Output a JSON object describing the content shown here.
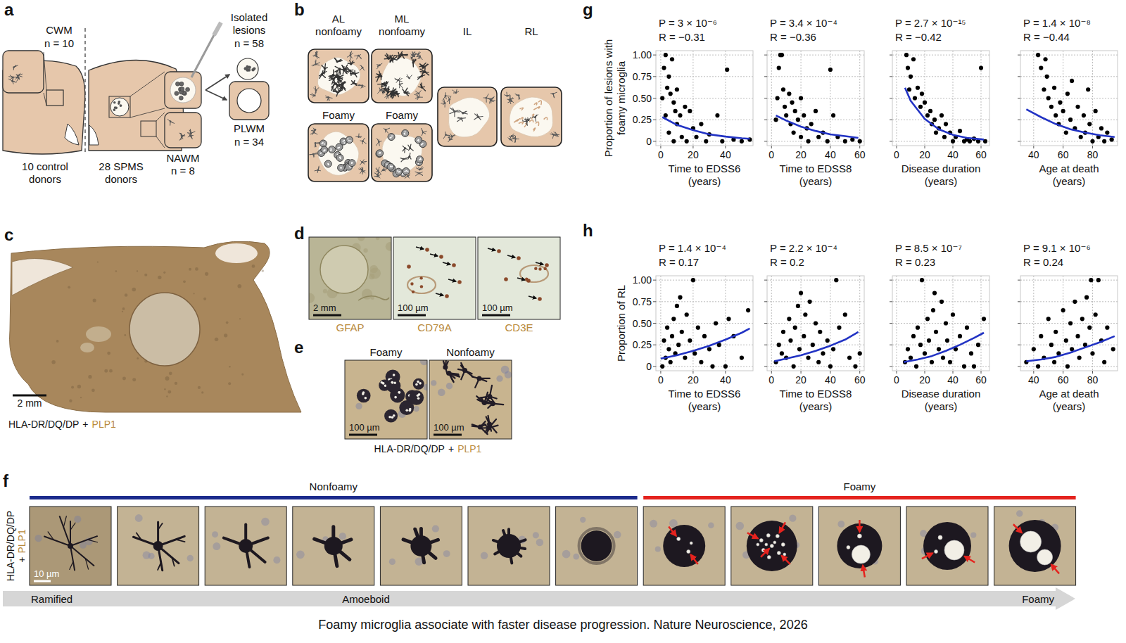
{
  "panels": {
    "a": {
      "letter": "a",
      "cwm": {
        "label": "CWM",
        "n": "n = 10"
      },
      "isolated": {
        "label": "Isolated lesions",
        "n": "n = 58"
      },
      "plwm": {
        "label": "PLWM",
        "n": "n = 34"
      },
      "nawm": {
        "label": "NAWM",
        "n": "n = 8"
      },
      "donors": [
        "10 control donors",
        "28 SPMS donors"
      ]
    },
    "b": {
      "letter": "b",
      "boxes": [
        "AL nonfoamy",
        "ML nonfoamy",
        "IL",
        "RL",
        "Foamy",
        "Foamy"
      ]
    },
    "c": {
      "letter": "c",
      "scale_bar": "2 mm",
      "stain_label": [
        "HLA-DR/DQ/DP",
        "+",
        "PLP1"
      ]
    },
    "d": {
      "letter": "d",
      "images": [
        {
          "label": "GFAP",
          "scale_bar": "2 mm"
        },
        {
          "label": "CD79A",
          "scale_bar": "100 µm"
        },
        {
          "label": "CD3E",
          "scale_bar": "100 µm"
        }
      ]
    },
    "e": {
      "letter": "e",
      "images": [
        {
          "label": "Foamy",
          "scale_bar": "100 µm"
        },
        {
          "label": "Nonfoamy",
          "scale_bar": "100 µm"
        }
      ],
      "stain_label": [
        "HLA-DR/DQ/DP",
        "+",
        "PLP1"
      ]
    },
    "f": {
      "letter": "f",
      "groups": [
        {
          "label": "Nonfoamy",
          "color": "#1c2b8c"
        },
        {
          "label": "Foamy",
          "color": "#e4231e"
        }
      ],
      "scale_bar": "10 µm",
      "stain_label": [
        "HLA-DR/DQ/DP",
        "+",
        "PLP1"
      ],
      "axis_labels": [
        "Ramified",
        "Amoeboid",
        "Foamy"
      ]
    },
    "g": {
      "letter": "g"
    },
    "h": {
      "letter": "h"
    }
  },
  "caption": "Foamy microglia associate with faster disease progression. Nature Neuroscience, 2026",
  "chart_data": [
    {
      "type": "scatter",
      "xlabel": "Time to EDSS6 (years)",
      "ylabel": "Proportion of lesions with foamy microglia",
      "annotations": [
        "P = 3 × 10⁻⁶",
        "R = −0.31"
      ],
      "xlim": [
        -3,
        57
      ],
      "xticks": [
        0,
        20,
        40
      ],
      "ylim": [
        -0.05,
        1.05
      ],
      "yticks": [
        0,
        0.25,
        {
          "value": 0.5,
          "label": "0.50"
        },
        0.75,
        {
          "value": 1,
          "label": "1.00"
        }
      ],
      "grid": true,
      "series": [
        {
          "type": "scatter",
          "color": "#000000",
          "marker": "circle",
          "x": [
            1,
            2,
            3,
            3,
            4,
            5,
            5,
            6,
            7,
            8,
            8,
            9,
            10,
            10,
            12,
            13,
            15,
            16,
            18,
            20,
            22,
            25,
            28,
            30,
            35,
            38,
            41,
            45,
            50,
            55
          ],
          "values": [
            0.5,
            0.85,
            1,
            0.3,
            0.62,
            0.75,
            0.1,
            0.55,
            0.95,
            0.45,
            0,
            0.35,
            0.6,
            0.2,
            0.3,
            0.05,
            0.4,
            0,
            0.35,
            0.15,
            0.05,
            0.2,
            0,
            0.08,
            0.3,
            0,
            0.83,
            0.02,
            0,
            0.02
          ]
        },
        {
          "type": "line",
          "color": "#2233c4",
          "line_style": "solid",
          "x": [
            1,
            10,
            20,
            30,
            40,
            50,
            55
          ],
          "values": [
            0.28,
            0.19,
            0.13,
            0.08,
            0.055,
            0.035,
            0.03
          ]
        }
      ]
    },
    {
      "type": "scatter",
      "xlabel": "Time to EDSS8 (years)",
      "annotations": [
        "P = 3.4 × 10⁻⁴",
        "R = −0.36"
      ],
      "xlim": [
        -3,
        63
      ],
      "xticks": [
        0,
        20,
        40,
        60
      ],
      "ylim": [
        -0.05,
        1.05
      ],
      "yticks": [
        0,
        0.25,
        {
          "value": 0.5,
          "label": "0.50"
        },
        0.75,
        {
          "value": 1,
          "label": "1.00"
        }
      ],
      "grid": true,
      "tick_labels": "x",
      "series": [
        {
          "type": "scatter",
          "color": "#000000",
          "marker": "circle",
          "x": [
            5,
            6,
            7,
            4,
            8,
            9,
            10,
            3,
            12,
            13,
            14,
            15,
            16,
            18,
            20,
            20,
            22,
            24,
            25,
            27,
            30,
            32,
            35,
            38,
            40,
            42,
            45,
            50,
            55,
            60
          ],
          "values": [
            0.85,
            1,
            1,
            0.5,
            0.6,
            0.4,
            0.3,
            0.25,
            0.55,
            0.2,
            0.45,
            0.1,
            0.35,
            0.25,
            0.5,
            0.05,
            0.3,
            0.15,
            0,
            0.2,
            0.35,
            0.05,
            0.1,
            0,
            0.83,
            0.3,
            0.05,
            0,
            0.02,
            0
          ]
        },
        {
          "type": "line",
          "color": "#2233c4",
          "line_style": "solid",
          "x": [
            3,
            10,
            20,
            30,
            40,
            50,
            59
          ],
          "values": [
            0.3,
            0.24,
            0.17,
            0.12,
            0.08,
            0.06,
            0.04
          ]
        }
      ]
    },
    {
      "type": "scatter",
      "xlabel": "Disease duration (years)",
      "annotations": [
        "P = 2.7 × 10⁻¹⁵",
        "R = −0.42"
      ],
      "xlim": [
        -3,
        66
      ],
      "xticks": [
        0,
        20,
        40,
        60
      ],
      "ylim": [
        -0.05,
        1.05
      ],
      "yticks": [
        0,
        0.25,
        {
          "value": 0.5,
          "label": "0.50"
        },
        0.75,
        {
          "value": 1,
          "label": "1.00"
        }
      ],
      "grid": true,
      "tick_labels": "x",
      "series": [
        {
          "type": "scatter",
          "color": "#000000",
          "marker": "circle",
          "x": [
            7,
            8,
            10,
            12,
            9,
            13,
            15,
            17,
            18,
            20,
            22,
            24,
            25,
            27,
            28,
            30,
            32,
            34,
            35,
            38,
            40,
            42,
            45,
            48,
            50,
            52,
            55,
            58,
            60,
            63
          ],
          "values": [
            1,
            0.85,
            0.75,
            0.95,
            0.6,
            0.5,
            0.62,
            0.4,
            0.55,
            0.45,
            0.3,
            0.35,
            0.2,
            0.25,
            0.1,
            0.15,
            0.3,
            0.05,
            0.2,
            0.1,
            0,
            0.05,
            0.12,
            0,
            0.02,
            0,
            0.03,
            0,
            0.85,
            0
          ]
        },
        {
          "type": "line",
          "color": "#2233c4",
          "line_style": "solid",
          "x": [
            6,
            10,
            20,
            30,
            40,
            50,
            62
          ],
          "values": [
            0.62,
            0.47,
            0.26,
            0.14,
            0.075,
            0.04,
            0.02
          ]
        }
      ]
    },
    {
      "type": "scatter",
      "xlabel": "Age at death (years)",
      "annotations": [
        "P = 1.4 × 10⁻⁸",
        "R = −0.44"
      ],
      "xlim": [
        31,
        97
      ],
      "xticks": [
        40,
        60,
        80
      ],
      "ylim": [
        -0.05,
        1.05
      ],
      "yticks": [
        0,
        0.25,
        {
          "value": 0.5,
          "label": "0.50"
        },
        0.75,
        {
          "value": 1,
          "label": "1.00"
        }
      ],
      "grid": true,
      "tick_labels": "x",
      "series": [
        {
          "type": "scatter",
          "color": "#000000",
          "marker": "circle",
          "x": [
            43,
            45,
            47,
            48,
            49,
            50,
            52,
            54,
            55,
            57,
            58,
            60,
            62,
            63,
            65,
            66,
            68,
            70,
            72,
            74,
            75,
            77,
            78,
            80,
            82,
            84,
            86,
            88,
            90,
            93
          ],
          "values": [
            1,
            0.85,
            0.6,
            0.95,
            0.75,
            0.5,
            0.4,
            0.62,
            0.3,
            0.2,
            0.45,
            0.35,
            0.1,
            0.55,
            0.25,
            0.7,
            0.15,
            0.4,
            0.05,
            0.3,
            0.1,
            0.6,
            0.2,
            0,
            0.35,
            0.05,
            0.15,
            0,
            0.1,
            0.02
          ]
        },
        {
          "type": "line",
          "color": "#2233c4",
          "line_style": "solid",
          "x": [
            35,
            45,
            55,
            65,
            75,
            85,
            95
          ],
          "values": [
            0.37,
            0.28,
            0.2,
            0.14,
            0.1,
            0.07,
            0.05
          ]
        }
      ]
    },
    {
      "type": "scatter",
      "xlabel": "Time to EDSS6 (years)",
      "ylabel": "Proportion of RL",
      "annotations": [
        "P = 1.4 × 10⁻⁴",
        "R = 0.17"
      ],
      "xlim": [
        -3,
        57
      ],
      "xticks": [
        0,
        20,
        40
      ],
      "ylim": [
        -0.05,
        1.05
      ],
      "yticks": [
        0,
        0.25,
        {
          "value": 0.5,
          "label": "0.50"
        },
        0.75,
        {
          "value": 1,
          "label": "1.00"
        }
      ],
      "grid": true,
      "series": [
        {
          "type": "scatter",
          "color": "#000000",
          "marker": "circle",
          "x": [
            1,
            2,
            3,
            4,
            5,
            6,
            7,
            8,
            9,
            10,
            11,
            12,
            13,
            15,
            16,
            18,
            20,
            21,
            23,
            25,
            27,
            30,
            32,
            34,
            36,
            40,
            42,
            45,
            50,
            54
          ],
          "values": [
            0,
            0.3,
            0.1,
            0.45,
            0.2,
            0.05,
            0.35,
            0.55,
            0.15,
            0.7,
            0.25,
            0.8,
            0.4,
            0.1,
            0.6,
            0.3,
            1,
            0.15,
            0.45,
            0.05,
            0.35,
            0.2,
            0,
            0.5,
            0.25,
            0,
            0.55,
            0.35,
            0.1,
            0.65
          ]
        },
        {
          "type": "line",
          "color": "#2233c4",
          "line_style": "solid",
          "x": [
            0,
            10,
            20,
            30,
            40,
            50,
            55
          ],
          "values": [
            0.09,
            0.13,
            0.18,
            0.24,
            0.31,
            0.39,
            0.44
          ]
        }
      ]
    },
    {
      "type": "scatter",
      "xlabel": "Time to EDSS8 (years)",
      "annotations": [
        "P = 2.2 × 10⁻⁴",
        "R = 0.2"
      ],
      "xlim": [
        -3,
        63
      ],
      "xticks": [
        0,
        20,
        40,
        60
      ],
      "ylim": [
        -0.05,
        1.05
      ],
      "yticks": [
        0,
        0.25,
        {
          "value": 0.5,
          "label": "0.50"
        },
        0.75,
        {
          "value": 1,
          "label": "1.00"
        }
      ],
      "grid": true,
      "tick_labels": "x",
      "series": [
        {
          "type": "scatter",
          "color": "#000000",
          "marker": "circle",
          "x": [
            3,
            5,
            7,
            8,
            10,
            12,
            13,
            15,
            16,
            18,
            19,
            20,
            22,
            23,
            25,
            26,
            28,
            30,
            32,
            33,
            35,
            38,
            40,
            42,
            44,
            46,
            50,
            53,
            57,
            60
          ],
          "values": [
            0.05,
            0.25,
            0.15,
            0.4,
            0.1,
            0.55,
            0.3,
            0,
            0.45,
            0.7,
            0.2,
            0.85,
            0.35,
            0.6,
            0.1,
            0.75,
            0.25,
            0.5,
            0.05,
            0.4,
            0.15,
            0.3,
            0,
            0.2,
            1,
            0.45,
            0.6,
            0.1,
            0,
            0.15
          ]
        },
        {
          "type": "line",
          "color": "#2233c4",
          "line_style": "solid",
          "x": [
            2,
            10,
            20,
            30,
            40,
            50,
            59
          ],
          "values": [
            0.06,
            0.09,
            0.13,
            0.18,
            0.24,
            0.31,
            0.4
          ]
        }
      ]
    },
    {
      "type": "scatter",
      "xlabel": "Disease duration (years)",
      "annotations": [
        "P = 8.5 × 10⁻⁷",
        "R = 0.23"
      ],
      "xlim": [
        -3,
        66
      ],
      "xticks": [
        0,
        20,
        40,
        60
      ],
      "ylim": [
        -0.05,
        1.05
      ],
      "yticks": [
        0,
        0.25,
        {
          "value": 0.5,
          "label": "0.50"
        },
        0.75,
        {
          "value": 1,
          "label": "1.00"
        }
      ],
      "grid": true,
      "tick_labels": "x",
      "series": [
        {
          "type": "scatter",
          "color": "#000000",
          "marker": "circle",
          "x": [
            6,
            8,
            10,
            12,
            14,
            15,
            17,
            18,
            20,
            22,
            23,
            25,
            26,
            27,
            28,
            30,
            32,
            33,
            35,
            36,
            38,
            40,
            42,
            45,
            48,
            50,
            53,
            55,
            58,
            62
          ],
          "values": [
            0.05,
            0.2,
            0.1,
            0.35,
            0,
            0.45,
            0.25,
            1,
            0.15,
            0.55,
            0.3,
            0.05,
            0.65,
            0.85,
            0.4,
            0.2,
            0.75,
            0.1,
            0.5,
            0.3,
            0.05,
            0.6,
            0.2,
            0.35,
            0,
            0.45,
            0.15,
            0,
            0.25,
            0.55
          ]
        },
        {
          "type": "line",
          "color": "#2233c4",
          "line_style": "solid",
          "x": [
            5,
            15,
            25,
            35,
            45,
            55,
            62
          ],
          "values": [
            0.05,
            0.08,
            0.12,
            0.18,
            0.25,
            0.33,
            0.39
          ]
        }
      ]
    },
    {
      "type": "scatter",
      "xlabel": "Age at death (years)",
      "annotations": [
        "P = 9.1 × 10⁻⁶",
        "R = 0.24"
      ],
      "xlim": [
        31,
        97
      ],
      "xticks": [
        40,
        60,
        80
      ],
      "ylim": [
        -0.05,
        1.05
      ],
      "yticks": [
        0,
        0.25,
        {
          "value": 0.5,
          "label": "0.50"
        },
        0.75,
        {
          "value": 1,
          "label": "1.00"
        }
      ],
      "grid": true,
      "tick_labels": "x",
      "series": [
        {
          "type": "scatter",
          "color": "#000000",
          "marker": "circle",
          "x": [
            35,
            40,
            43,
            45,
            47,
            50,
            52,
            54,
            55,
            57,
            60,
            62,
            63,
            65,
            66,
            68,
            70,
            71,
            73,
            75,
            76,
            78,
            79,
            80,
            82,
            84,
            86,
            88,
            90,
            94
          ],
          "values": [
            0.05,
            0.2,
            0,
            0.35,
            0.1,
            0.55,
            0.25,
            0.05,
            0.4,
            0.15,
            0.65,
            0.3,
            0,
            0.5,
            0.2,
            0.75,
            0.35,
            0.1,
            0.55,
            0.25,
            0.8,
            0.45,
            1,
            0.15,
            0.6,
            1,
            0.3,
            0.05,
            0.45,
            0.2
          ]
        },
        {
          "type": "line",
          "color": "#2233c4",
          "line_style": "solid",
          "x": [
            35,
            45,
            55,
            65,
            75,
            85,
            95
          ],
          "values": [
            0.06,
            0.08,
            0.11,
            0.16,
            0.22,
            0.28,
            0.35
          ]
        }
      ]
    }
  ]
}
